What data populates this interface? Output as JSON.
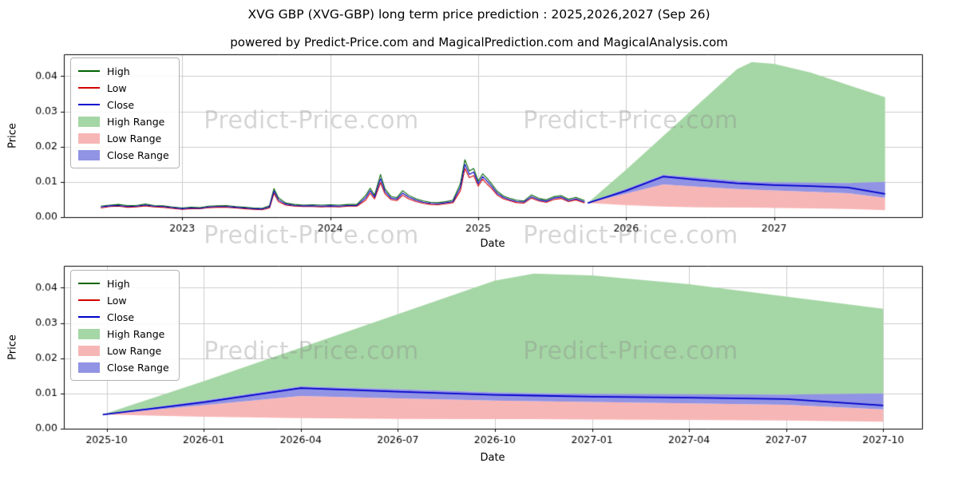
{
  "title": "XVG GBP (XVG-GBP) long term price prediction : 2025,2026,2027 (Sep 26)",
  "subtitle": "powered by Predict-Price.com and MagicalPrediction.com and MagicalAnalysis.com",
  "watermark": "Predict-Price.com",
  "axes": {
    "x_label": "Date",
    "y_label": "Price"
  },
  "legend": [
    "High",
    "Low",
    "Close",
    "High Range",
    "Low Range",
    "Close Range"
  ],
  "colors": {
    "high": "#006400",
    "low": "#d40000",
    "close": "#0000cc",
    "high_range": "#a5d6a5",
    "low_range": "#f7b6b6",
    "close_range": "#9193e4",
    "grid": "#cdcdcd",
    "spine": "#000000",
    "watermark": "#c9c9c9"
  },
  "chart_data": [
    {
      "type": "line",
      "name": "history-and-forecast",
      "title": "",
      "xlabel": "Date",
      "ylabel": "Price",
      "xlim": [
        2022.2,
        2028.0
      ],
      "ylim": [
        0,
        0.0462
      ],
      "grid": true,
      "legend_position": "upper-left",
      "xticks": {
        "values": [
          2023,
          2024,
          2025,
          2026,
          2027
        ],
        "labels": [
          "2023",
          "2024",
          "2025",
          "2026",
          "2027"
        ]
      },
      "yticks": {
        "values": [
          0,
          0.01,
          0.02,
          0.03,
          0.04
        ],
        "labels": [
          "0.00",
          "0.01",
          "0.02",
          "0.03",
          "0.04"
        ]
      },
      "history": {
        "columns": [
          "x_year",
          "high",
          "low",
          "close"
        ],
        "points": [
          [
            2022.45,
            0.0031,
            0.0026,
            0.0029
          ],
          [
            2022.51,
            0.0034,
            0.003,
            0.0032
          ],
          [
            2022.57,
            0.0036,
            0.0031,
            0.0033
          ],
          [
            2022.63,
            0.0033,
            0.0028,
            0.003
          ],
          [
            2022.69,
            0.0033,
            0.0029,
            0.0031
          ],
          [
            2022.75,
            0.0037,
            0.0032,
            0.0034
          ],
          [
            2022.81,
            0.0033,
            0.0029,
            0.0031
          ],
          [
            2022.87,
            0.0032,
            0.0028,
            0.003
          ],
          [
            2022.93,
            0.0029,
            0.0025,
            0.0027
          ],
          [
            2023.0,
            0.0026,
            0.0022,
            0.0024
          ],
          [
            2023.06,
            0.0028,
            0.0024,
            0.0026
          ],
          [
            2023.12,
            0.0027,
            0.0024,
            0.0025
          ],
          [
            2023.18,
            0.0031,
            0.0027,
            0.0029
          ],
          [
            2023.24,
            0.0032,
            0.0028,
            0.003
          ],
          [
            2023.3,
            0.0033,
            0.0028,
            0.003
          ],
          [
            2023.36,
            0.003,
            0.0026,
            0.0028
          ],
          [
            2023.42,
            0.0028,
            0.0024,
            0.0026
          ],
          [
            2023.48,
            0.0026,
            0.0022,
            0.0024
          ],
          [
            2023.54,
            0.0025,
            0.0021,
            0.0023
          ],
          [
            2023.59,
            0.0032,
            0.0026,
            0.0029
          ],
          [
            2023.62,
            0.0081,
            0.0068,
            0.0074
          ],
          [
            2023.65,
            0.0055,
            0.0044,
            0.0049
          ],
          [
            2023.7,
            0.004,
            0.0034,
            0.0037
          ],
          [
            2023.76,
            0.0036,
            0.0031,
            0.0033
          ],
          [
            2023.82,
            0.0034,
            0.003,
            0.0032
          ],
          [
            2023.88,
            0.0035,
            0.003,
            0.0032
          ],
          [
            2023.94,
            0.0034,
            0.0029,
            0.0031
          ],
          [
            2024.0,
            0.0035,
            0.003,
            0.0032
          ],
          [
            2024.06,
            0.0034,
            0.0029,
            0.0031
          ],
          [
            2024.12,
            0.0036,
            0.0031,
            0.0033
          ],
          [
            2024.18,
            0.0036,
            0.0031,
            0.0033
          ],
          [
            2024.24,
            0.0062,
            0.0048,
            0.0055
          ],
          [
            2024.27,
            0.0082,
            0.0068,
            0.0075
          ],
          [
            2024.3,
            0.0062,
            0.0052,
            0.0057
          ],
          [
            2024.34,
            0.0121,
            0.0098,
            0.0109
          ],
          [
            2024.37,
            0.008,
            0.0066,
            0.0073
          ],
          [
            2024.41,
            0.0059,
            0.005,
            0.0054
          ],
          [
            2024.45,
            0.0055,
            0.0047,
            0.0051
          ],
          [
            2024.49,
            0.0075,
            0.0062,
            0.0068
          ],
          [
            2024.53,
            0.0062,
            0.0052,
            0.0057
          ],
          [
            2024.58,
            0.0052,
            0.0044,
            0.0048
          ],
          [
            2024.63,
            0.0046,
            0.0039,
            0.0042
          ],
          [
            2024.68,
            0.0042,
            0.0036,
            0.0039
          ],
          [
            2024.73,
            0.0041,
            0.0035,
            0.0038
          ],
          [
            2024.78,
            0.0044,
            0.0038,
            0.0041
          ],
          [
            2024.83,
            0.0048,
            0.0041,
            0.0044
          ],
          [
            2024.88,
            0.0095,
            0.0075,
            0.0085
          ],
          [
            2024.91,
            0.0163,
            0.0138,
            0.015
          ],
          [
            2024.94,
            0.0131,
            0.0112,
            0.0121
          ],
          [
            2024.97,
            0.0138,
            0.0118,
            0.0128
          ],
          [
            2025.0,
            0.0102,
            0.0088,
            0.0095
          ],
          [
            2025.03,
            0.0123,
            0.0108,
            0.0115
          ],
          [
            2025.06,
            0.011,
            0.0094,
            0.0102
          ],
          [
            2025.09,
            0.0095,
            0.0082,
            0.0088
          ],
          [
            2025.13,
            0.0073,
            0.0062,
            0.0067
          ],
          [
            2025.17,
            0.006,
            0.0052,
            0.0056
          ],
          [
            2025.21,
            0.0054,
            0.0047,
            0.005
          ],
          [
            2025.26,
            0.0048,
            0.0041,
            0.0044
          ],
          [
            2025.31,
            0.0046,
            0.004,
            0.0043
          ],
          [
            2025.36,
            0.0063,
            0.0054,
            0.0058
          ],
          [
            2025.41,
            0.0053,
            0.0046,
            0.0049
          ],
          [
            2025.46,
            0.0049,
            0.0042,
            0.0045
          ],
          [
            2025.51,
            0.0058,
            0.005,
            0.0054
          ],
          [
            2025.56,
            0.0061,
            0.0053,
            0.0057
          ],
          [
            2025.61,
            0.0051,
            0.0044,
            0.0047
          ],
          [
            2025.66,
            0.0056,
            0.0049,
            0.0052
          ],
          [
            2025.72,
            0.0047,
            0.004,
            0.0043
          ]
        ]
      },
      "forecast": {
        "x": [
          2025.74,
          2026.0,
          2026.25,
          2026.5,
          2026.75,
          2026.85,
          2027.0,
          2027.25,
          2027.5,
          2027.75
        ],
        "high_upper": [
          0.004,
          0.0135,
          0.023,
          0.0325,
          0.042,
          0.044,
          0.0435,
          0.041,
          0.0375,
          0.034
        ],
        "close_upper": [
          0.004,
          0.008,
          0.012,
          0.0112,
          0.0103,
          0.0101,
          0.0099,
          0.0098,
          0.0097,
          0.01
        ],
        "close": [
          0.004,
          0.0075,
          0.0115,
          0.0105,
          0.0096,
          0.0094,
          0.0091,
          0.0088,
          0.0084,
          0.0066
        ],
        "close_lower": [
          0.004,
          0.0067,
          0.0093,
          0.0086,
          0.008,
          0.0078,
          0.0076,
          0.0072,
          0.0068,
          0.0055
        ],
        "low_lower": [
          0.004,
          0.0034,
          0.003,
          0.0028,
          0.0027,
          0.0027,
          0.0026,
          0.0025,
          0.0023,
          0.002
        ]
      }
    },
    {
      "type": "area",
      "name": "forecast-detail",
      "title": "",
      "xlabel": "Date",
      "ylabel": "Price",
      "xlim": [
        2025.64,
        2027.85
      ],
      "ylim": [
        0,
        0.0462
      ],
      "grid": true,
      "legend_position": "upper-left",
      "xticks": {
        "values": [
          2025.75,
          2026.0,
          2026.25,
          2026.5,
          2026.75,
          2027.0,
          2027.25,
          2027.5,
          2027.75
        ],
        "labels": [
          "2025-10",
          "2026-01",
          "2026-04",
          "2026-07",
          "2026-10",
          "2027-01",
          "2027-04",
          "2027-07",
          "2027-10"
        ]
      },
      "yticks": {
        "values": [
          0,
          0.01,
          0.02,
          0.03,
          0.04
        ],
        "labels": [
          "0.00",
          "0.01",
          "0.02",
          "0.03",
          "0.04"
        ]
      },
      "forecast": {
        "x": [
          2025.74,
          2026.0,
          2026.25,
          2026.5,
          2026.75,
          2026.85,
          2027.0,
          2027.25,
          2027.5,
          2027.75
        ],
        "high_upper": [
          0.004,
          0.0135,
          0.023,
          0.0325,
          0.042,
          0.044,
          0.0435,
          0.041,
          0.0375,
          0.034
        ],
        "close_upper": [
          0.004,
          0.008,
          0.012,
          0.0112,
          0.0103,
          0.0101,
          0.0099,
          0.0098,
          0.0097,
          0.01
        ],
        "close": [
          0.004,
          0.0075,
          0.0115,
          0.0105,
          0.0096,
          0.0094,
          0.0091,
          0.0088,
          0.0084,
          0.0066
        ],
        "close_lower": [
          0.004,
          0.0067,
          0.0093,
          0.0086,
          0.008,
          0.0078,
          0.0076,
          0.0072,
          0.0068,
          0.0055
        ],
        "low_lower": [
          0.004,
          0.0034,
          0.003,
          0.0028,
          0.0027,
          0.0027,
          0.0026,
          0.0025,
          0.0023,
          0.002
        ]
      }
    }
  ]
}
